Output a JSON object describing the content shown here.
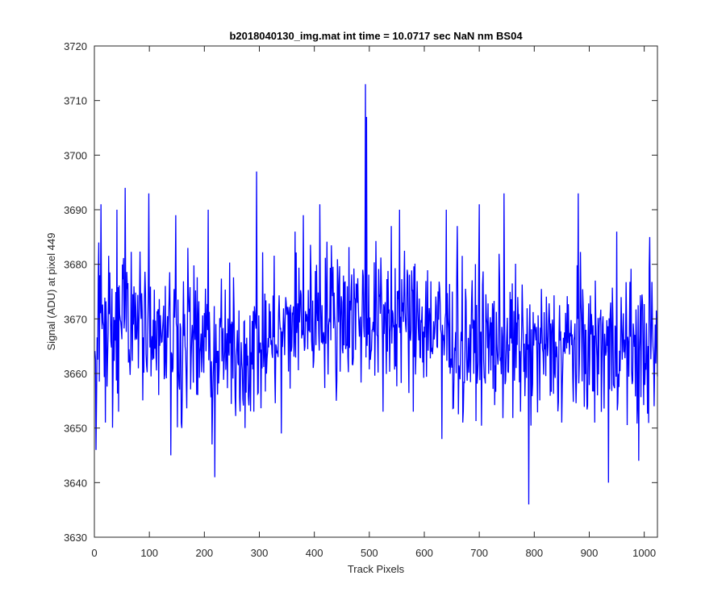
{
  "chart_data": {
    "type": "line",
    "title": "b2018040130_img.mat int time = 10.0717 sec  NaN nm BS04",
    "xlabel": "Track Pixels",
    "ylabel": "Signal (ADU) at pixel 449",
    "xlim": [
      0,
      1024
    ],
    "ylim": [
      3630,
      3720
    ],
    "x_ticks": [
      0,
      100,
      200,
      300,
      400,
      500,
      600,
      700,
      800,
      900,
      1000
    ],
    "y_ticks": [
      3630,
      3640,
      3650,
      3660,
      3670,
      3680,
      3690,
      3700,
      3710,
      3720
    ],
    "grid": false,
    "legend": "none",
    "series": [
      {
        "color": "#0000ff",
        "x_start": 1,
        "x_step": 1,
        "n_points": 1024,
        "baseline": [
          [
            0,
            3667
          ],
          [
            50,
            3671
          ],
          [
            100,
            3670
          ],
          [
            150,
            3667
          ],
          [
            200,
            3665
          ],
          [
            250,
            3664
          ],
          [
            300,
            3665
          ],
          [
            350,
            3668
          ],
          [
            400,
            3671
          ],
          [
            450,
            3672
          ],
          [
            500,
            3670
          ],
          [
            550,
            3670
          ],
          [
            600,
            3670
          ],
          [
            650,
            3666
          ],
          [
            700,
            3665
          ],
          [
            750,
            3666
          ],
          [
            800,
            3664
          ],
          [
            850,
            3665
          ],
          [
            900,
            3665
          ],
          [
            950,
            3665
          ],
          [
            1024,
            3665
          ]
        ],
        "noise_amplitude": 6.5,
        "noise_seed": 449,
        "peaks": [
          [
            3,
            3646
          ],
          [
            8,
            3684
          ],
          [
            12,
            3691
          ],
          [
            20,
            3651
          ],
          [
            41,
            3690
          ],
          [
            44,
            3653
          ],
          [
            56,
            3694
          ],
          [
            99,
            3693
          ],
          [
            139,
            3645
          ],
          [
            148,
            3689
          ],
          [
            159,
            3650
          ],
          [
            170,
            3683
          ],
          [
            207,
            3690
          ],
          [
            214,
            3647
          ],
          [
            219,
            3641
          ],
          [
            274,
            3650
          ],
          [
            290,
            3653
          ],
          [
            295,
            3697
          ],
          [
            340,
            3649
          ],
          [
            365,
            3686
          ],
          [
            380,
            3689
          ],
          [
            410,
            3691
          ],
          [
            440,
            3655
          ],
          [
            493,
            3713
          ],
          [
            495,
            3707
          ],
          [
            525,
            3653
          ],
          [
            540,
            3687
          ],
          [
            555,
            3690
          ],
          [
            580,
            3653
          ],
          [
            632,
            3648
          ],
          [
            640,
            3690
          ],
          [
            660,
            3687
          ],
          [
            670,
            3651
          ],
          [
            700,
            3691
          ],
          [
            745,
            3693
          ],
          [
            775,
            3653
          ],
          [
            790,
            3636
          ],
          [
            850,
            3651
          ],
          [
            880,
            3693
          ],
          [
            910,
            3651
          ],
          [
            935,
            3640
          ],
          [
            950,
            3686
          ],
          [
            990,
            3644
          ],
          [
            1010,
            3685
          ],
          [
            1018,
            3654
          ]
        ]
      }
    ]
  }
}
